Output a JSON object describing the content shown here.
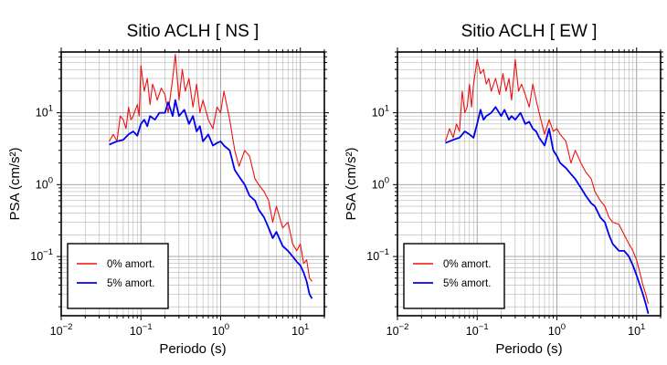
{
  "chart_data": [
    {
      "type": "line",
      "title": "Sitio ACLH [ NS ]",
      "xlabel": "Periodo (s)",
      "ylabel": "PSA (cm/s²)",
      "xscale": "log",
      "yscale": "log",
      "xlim": [
        0.01,
        20
      ],
      "ylim": [
        0.015,
        70
      ],
      "xticks": [
        {
          "base": "10",
          "exp": "−2"
        },
        {
          "base": "10",
          "exp": "−1"
        },
        {
          "base": "10",
          "exp": "0"
        },
        {
          "base": "10",
          "exp": "1"
        }
      ],
      "yticks": [
        {
          "base": "10",
          "exp": "−1"
        },
        {
          "base": "10",
          "exp": "0"
        },
        {
          "base": "10",
          "exp": "1"
        }
      ],
      "grid": true,
      "legend_position": "bottom-left",
      "series": [
        {
          "name": "0% amort.",
          "color": "#ee1111",
          "x": [
            0.04,
            0.045,
            0.05,
            0.055,
            0.06,
            0.065,
            0.07,
            0.075,
            0.08,
            0.085,
            0.09,
            0.095,
            0.1,
            0.11,
            0.12,
            0.13,
            0.14,
            0.15,
            0.16,
            0.18,
            0.2,
            0.22,
            0.25,
            0.27,
            0.3,
            0.33,
            0.36,
            0.4,
            0.45,
            0.5,
            0.55,
            0.6,
            0.7,
            0.8,
            0.9,
            1.0,
            1.1,
            1.3,
            1.5,
            1.7,
            2.0,
            2.3,
            2.7,
            3.0,
            3.5,
            4.0,
            4.5,
            5.0,
            6.0,
            7.0,
            8.0,
            9.0,
            10,
            11,
            12,
            13,
            14
          ],
          "y": [
            4.0,
            5.0,
            4.0,
            9.0,
            8.0,
            6.0,
            12.0,
            8.0,
            9.0,
            11.0,
            13.0,
            9.0,
            45.0,
            20.0,
            30.0,
            13.0,
            25.0,
            20.0,
            15.0,
            22.0,
            18.0,
            10.0,
            30.0,
            65.0,
            15.0,
            40.0,
            20.0,
            30.0,
            12.0,
            25.0,
            10.0,
            15.0,
            8.0,
            6.0,
            12.0,
            10.0,
            20.0,
            8.0,
            3.0,
            1.8,
            3.0,
            2.5,
            1.2,
            1.0,
            0.8,
            0.6,
            0.3,
            0.5,
            0.25,
            0.3,
            0.15,
            0.12,
            0.15,
            0.08,
            0.09,
            0.05,
            0.045
          ]
        },
        {
          "name": "5% amort.",
          "color": "#0000ee",
          "x": [
            0.04,
            0.05,
            0.06,
            0.07,
            0.08,
            0.09,
            0.1,
            0.11,
            0.12,
            0.13,
            0.15,
            0.17,
            0.2,
            0.22,
            0.25,
            0.27,
            0.3,
            0.35,
            0.4,
            0.45,
            0.5,
            0.55,
            0.6,
            0.7,
            0.8,
            0.9,
            1.0,
            1.1,
            1.3,
            1.5,
            1.7,
            2.0,
            2.3,
            2.7,
            3.0,
            3.5,
            4.0,
            4.5,
            5.0,
            6.0,
            7.0,
            8.0,
            9.0,
            10,
            11,
            12,
            13,
            14
          ],
          "y": [
            3.6,
            4.0,
            4.2,
            5.0,
            5.5,
            4.8,
            7.0,
            8.0,
            6.5,
            9.0,
            8.0,
            10.0,
            10.0,
            14.0,
            9.0,
            15.0,
            9.0,
            11.0,
            7.0,
            9.0,
            5.5,
            6.5,
            4.0,
            5.0,
            3.5,
            3.8,
            4.0,
            3.5,
            3.0,
            1.6,
            1.3,
            1.0,
            0.7,
            0.6,
            0.45,
            0.35,
            0.25,
            0.18,
            0.22,
            0.14,
            0.12,
            0.1,
            0.085,
            0.075,
            0.06,
            0.045,
            0.03,
            0.026
          ]
        }
      ]
    },
    {
      "type": "line",
      "title": "Sitio ACLH [ EW ]",
      "xlabel": "Periodo (s)",
      "ylabel": "PSA (cm/s²)",
      "xscale": "log",
      "yscale": "log",
      "xlim": [
        0.01,
        20
      ],
      "ylim": [
        0.015,
        70
      ],
      "xticks": [
        {
          "base": "10",
          "exp": "−2"
        },
        {
          "base": "10",
          "exp": "−1"
        },
        {
          "base": "10",
          "exp": "0"
        },
        {
          "base": "10",
          "exp": "1"
        }
      ],
      "yticks": [
        {
          "base": "10",
          "exp": "−1"
        },
        {
          "base": "10",
          "exp": "0"
        },
        {
          "base": "10",
          "exp": "1"
        }
      ],
      "grid": true,
      "legend_position": "bottom-left",
      "series": [
        {
          "name": "0% amort.",
          "color": "#ee1111",
          "x": [
            0.04,
            0.045,
            0.05,
            0.055,
            0.06,
            0.065,
            0.07,
            0.075,
            0.08,
            0.085,
            0.09,
            0.1,
            0.11,
            0.12,
            0.13,
            0.14,
            0.15,
            0.17,
            0.19,
            0.21,
            0.23,
            0.25,
            0.27,
            0.3,
            0.33,
            0.36,
            0.4,
            0.45,
            0.5,
            0.55,
            0.6,
            0.7,
            0.8,
            0.9,
            1.0,
            1.1,
            1.3,
            1.5,
            1.7,
            2.0,
            2.3,
            2.7,
            3.0,
            3.5,
            4.0,
            4.5,
            5.0,
            6.0,
            7.0,
            8.0,
            9.0,
            10,
            11,
            12,
            13,
            14
          ],
          "y": [
            4.0,
            6.0,
            4.5,
            7.0,
            5.5,
            20.0,
            10.0,
            12.0,
            25.0,
            12.0,
            25.0,
            55.0,
            35.0,
            40.0,
            25.0,
            30.0,
            20.0,
            30.0,
            18.0,
            35.0,
            20.0,
            30.0,
            15.0,
            55.0,
            20.0,
            25.0,
            18.0,
            12.0,
            25.0,
            15.0,
            10.0,
            5.0,
            8.0,
            5.5,
            6.0,
            5.0,
            4.0,
            2.0,
            3.0,
            2.0,
            1.5,
            1.2,
            0.8,
            0.6,
            0.5,
            0.35,
            0.3,
            0.28,
            0.2,
            0.15,
            0.12,
            0.09,
            0.06,
            0.04,
            0.03,
            0.022
          ]
        },
        {
          "name": "5% amort.",
          "color": "#0000ee",
          "x": [
            0.04,
            0.05,
            0.06,
            0.07,
            0.08,
            0.09,
            0.1,
            0.11,
            0.12,
            0.13,
            0.15,
            0.17,
            0.2,
            0.22,
            0.25,
            0.27,
            0.3,
            0.35,
            0.4,
            0.45,
            0.5,
            0.55,
            0.6,
            0.7,
            0.8,
            0.9,
            1.0,
            1.1,
            1.3,
            1.5,
            1.7,
            2.0,
            2.3,
            2.7,
            3.0,
            3.5,
            4.0,
            4.5,
            5.0,
            6.0,
            7.0,
            8.0,
            9.0,
            10,
            11,
            12,
            13,
            14
          ],
          "y": [
            3.8,
            4.2,
            4.5,
            5.5,
            5.0,
            4.5,
            7.0,
            11.0,
            8.0,
            9.0,
            10.0,
            12.0,
            9.0,
            11.0,
            8.0,
            9.0,
            8.0,
            10.0,
            7.0,
            7.5,
            6.0,
            5.5,
            4.5,
            3.5,
            6.0,
            3.0,
            2.5,
            2.0,
            1.7,
            1.4,
            1.2,
            0.9,
            0.7,
            0.55,
            0.5,
            0.35,
            0.3,
            0.2,
            0.15,
            0.12,
            0.12,
            0.1,
            0.075,
            0.055,
            0.04,
            0.03,
            0.022,
            0.016
          ]
        }
      ]
    }
  ]
}
